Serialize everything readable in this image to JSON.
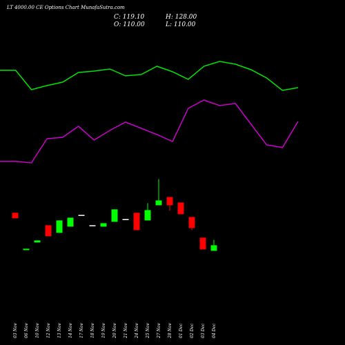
{
  "header": {
    "title": "LT 4000.00 CE Options Chart MunafaSutra.com",
    "close": "C: 119.10",
    "high": "H: 128.00",
    "open": "O: 110.00",
    "low": "L: 110.00"
  },
  "chart_data": [
    {
      "type": "line",
      "ylim": [
        0,
        100
      ],
      "series": [
        {
          "color": "#00e600",
          "values": [
            86.3,
            86.3,
            68.8,
            72.5,
            75.6,
            84.4,
            85.6,
            87.5,
            81.3,
            82.5,
            90,
            85,
            78.1,
            90,
            94.4,
            91.9,
            86.9,
            79.4,
            68.1,
            70.6
          ]
        },
        {
          "color": "#cc00cc",
          "values": [
            3.8,
            3.8,
            2.5,
            24.4,
            25.6,
            35.6,
            23.1,
            31.9,
            39.4,
            33.8,
            28.1,
            21.9,
            51.9,
            59.4,
            54.4,
            56.3,
            37.5,
            18.8,
            16.3,
            40
          ]
        }
      ]
    },
    {
      "type": "candlestick",
      "ylim": [
        90,
        230
      ],
      "up_color": "#00ff00",
      "down_color": "#ff0000",
      "doji_color": "#ffffff",
      "categories": [
        "03 Nov",
        "06 Nov",
        "10 Nov",
        "12 Nov",
        "13 Nov",
        "14 Nov",
        "17 Nov",
        "18 Nov",
        "19 Nov",
        "20 Nov",
        "21 Nov",
        "24 Nov",
        "25 Nov",
        "27 Nov",
        "28 Nov",
        "01 Dec",
        "02 Dec",
        "03 Dec",
        "04 Dec"
      ],
      "open": [
        172.6,
        111.1,
        123.7,
        152.1,
        139.6,
        149.8,
        169.2,
        152.1,
        149.8,
        157.8,
        162.3,
        172.6,
        160.1,
        185.1,
        198.7,
        189.6,
        165.7,
        131.6,
        110
      ],
      "high": [
        172.6,
        113.4,
        127.1,
        152.1,
        160.1,
        164.6,
        169.2,
        152.1,
        155.5,
        178.3,
        162.3,
        172.6,
        188.5,
        228.3,
        198.7,
        189.6,
        165.7,
        131.6,
        128
      ],
      "low": [
        163.5,
        111.1,
        123.7,
        133.9,
        139.6,
        149.8,
        169.2,
        152.1,
        149.8,
        157.8,
        162.3,
        144.1,
        160.1,
        185.1,
        176.0,
        170.3,
        144.1,
        112.3,
        110
      ],
      "close": [
        163.5,
        113.4,
        127.1,
        133.9,
        160.1,
        164.6,
        169.2,
        152.1,
        155.5,
        178.3,
        162.3,
        144.1,
        177.1,
        193.0,
        185.1,
        170.3,
        147.5,
        112.3,
        119.1
      ]
    }
  ]
}
